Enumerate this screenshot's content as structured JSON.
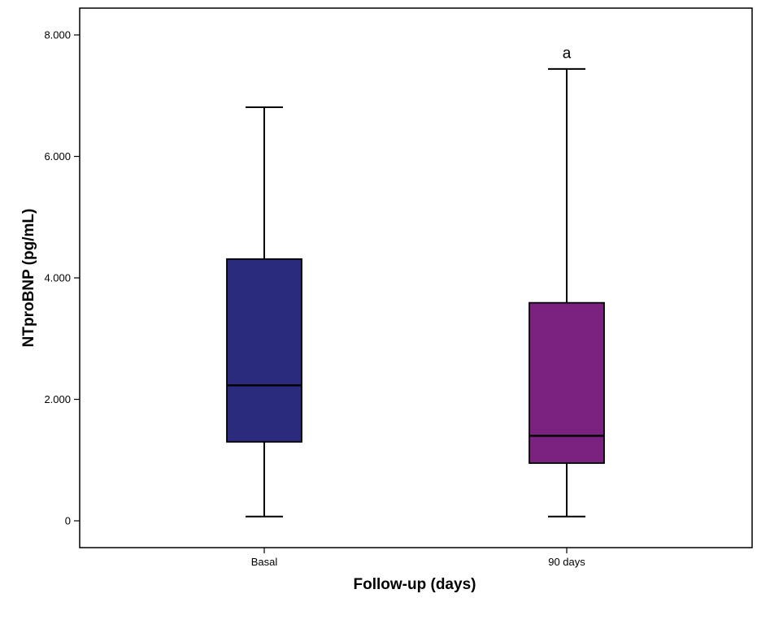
{
  "chart_data": {
    "type": "box",
    "title": "",
    "xlabel": "Follow-up (days)",
    "ylabel": "NTproBNP (pg/mL)",
    "ylim": [
      -400,
      8450
    ],
    "yticks": [
      0,
      2000,
      4000,
      6000,
      8000
    ],
    "ytick_labels": [
      "0",
      "2.000",
      "4.000",
      "6.000",
      "8.000"
    ],
    "grid": false,
    "categories": [
      "Basal",
      "90 days"
    ],
    "boxes": [
      {
        "category": "Basal",
        "min": 70,
        "q1": 1300,
        "median": 2230,
        "q3": 4310,
        "max": 6810,
        "color": "#2b2b7e"
      },
      {
        "category": "90 days",
        "min": 70,
        "q1": 950,
        "median": 1400,
        "q3": 3590,
        "max": 7440,
        "color": "#7b2280"
      }
    ],
    "annotations": [
      {
        "category": "90 days",
        "text": "a",
        "y": 7700
      }
    ]
  }
}
